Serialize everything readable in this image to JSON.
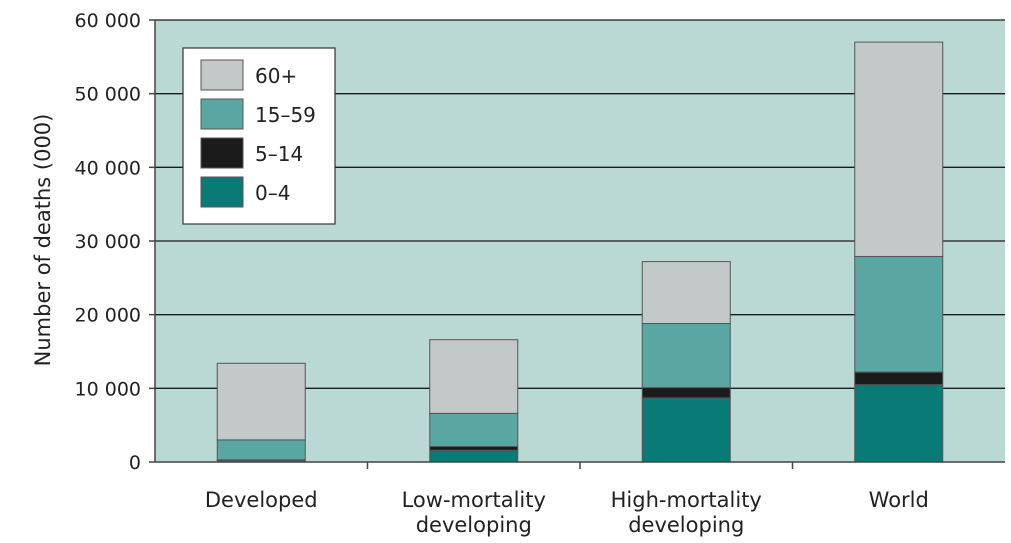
{
  "chart_data": {
    "type": "bar",
    "stacked": true,
    "ylabel": "Number of deaths (000)",
    "ylim": [
      0,
      60000
    ],
    "yticks": [
      0,
      10000,
      20000,
      30000,
      40000,
      50000,
      60000
    ],
    "ytick_labels": [
      "0",
      "10 000",
      "20 000",
      "30 000",
      "40 000",
      "50 000",
      "60 000"
    ],
    "categories": [
      [
        "Developed"
      ],
      [
        "Low-mortality",
        "developing"
      ],
      [
        "High-mortality",
        "developing"
      ],
      [
        "World"
      ]
    ],
    "series": [
      {
        "name": "0–4",
        "color": "#0a7a76",
        "values": [
          200,
          1600,
          8700,
          10500
        ]
      },
      {
        "name": "5–14",
        "color": "#1b1b1b",
        "values": [
          100,
          500,
          1400,
          1700
        ]
      },
      {
        "name": "15–59",
        "color": "#59a6a3",
        "values": [
          2700,
          4500,
          8700,
          15700
        ]
      },
      {
        "name": "60+",
        "color": "#c3c8c8",
        "values": [
          10400,
          10000,
          8400,
          29100
        ]
      }
    ],
    "legend_order": [
      "60+",
      "15–59",
      "5–14",
      "0–4"
    ],
    "legend_position": "top-left",
    "grid": true,
    "plot_background": "#bad9d4",
    "gridline_color": "#1a1a1a"
  }
}
